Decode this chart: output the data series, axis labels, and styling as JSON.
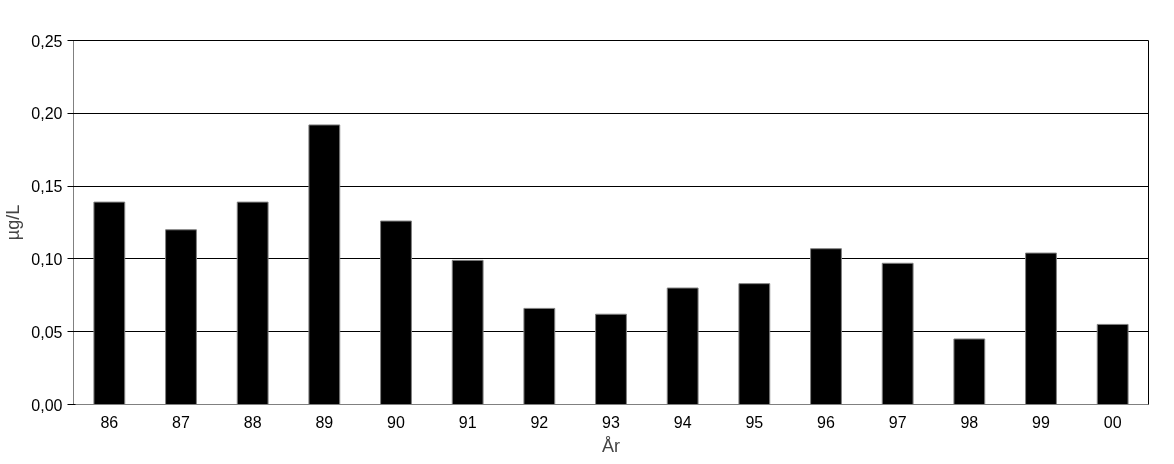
{
  "chart_data": {
    "type": "bar",
    "xlabel": "År",
    "ylabel": "µg/L",
    "categories": [
      "86",
      "87",
      "88",
      "89",
      "90",
      "91",
      "92",
      "93",
      "94",
      "95",
      "96",
      "97",
      "98",
      "99",
      "00"
    ],
    "values": [
      0.139,
      0.12,
      0.139,
      0.192,
      0.126,
      0.099,
      0.066,
      0.062,
      0.08,
      0.083,
      0.107,
      0.097,
      0.045,
      0.104,
      0.055
    ],
    "color": "#000000",
    "ylim": [
      0,
      0.25
    ],
    "yticks": [
      {
        "value": 0,
        "label": "0,00"
      },
      {
        "value": 0.05,
        "label": "0,05"
      },
      {
        "value": 0.1,
        "label": "0,10"
      },
      {
        "value": 0.15,
        "label": "0,15"
      },
      {
        "value": 0.2,
        "label": "0,20"
      },
      {
        "value": 0.25,
        "label": "0,25"
      }
    ],
    "grid": "y"
  }
}
